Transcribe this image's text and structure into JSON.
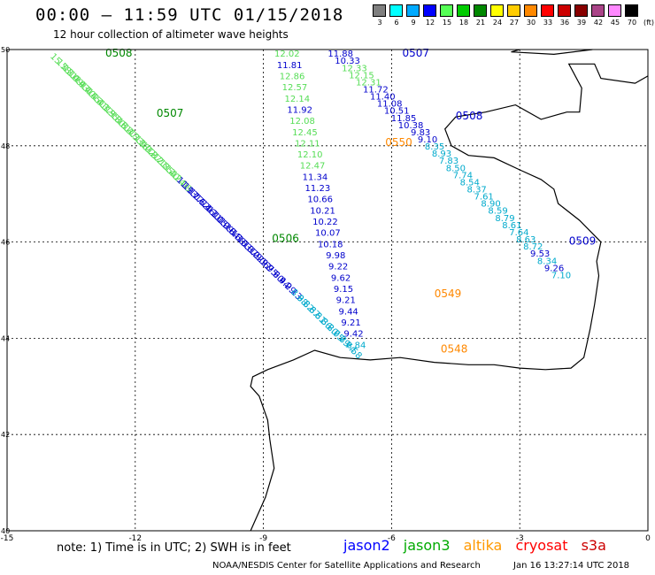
{
  "header": {
    "title": "00:00 – 11:59 UTC 01/15/2018",
    "subtitle": "12 hour collection of altimeter wave heights"
  },
  "legend": {
    "unit": "(ft)",
    "bins": [
      {
        "label": "3",
        "color": "#7f7f7f"
      },
      {
        "label": "6",
        "color": "#00ffff"
      },
      {
        "label": "9",
        "color": "#00aaff"
      },
      {
        "label": "12",
        "color": "#0000ff"
      },
      {
        "label": "15",
        "color": "#55ff55"
      },
      {
        "label": "18",
        "color": "#00cc00"
      },
      {
        "label": "21",
        "color": "#008800"
      },
      {
        "label": "24",
        "color": "#ffff00"
      },
      {
        "label": "27",
        "color": "#ffcc00"
      },
      {
        "label": "30",
        "color": "#ff8800"
      },
      {
        "label": "33",
        "color": "#ff0000"
      },
      {
        "label": "36",
        "color": "#cc0000"
      },
      {
        "label": "39",
        "color": "#880000"
      },
      {
        "label": "42",
        "color": "#aa4488"
      },
      {
        "label": "45",
        "color": "#ff88ff"
      },
      {
        "label": "70",
        "color": "#000000"
      }
    ]
  },
  "map": {
    "lon_range": [
      -15,
      0
    ],
    "lat_range": [
      40,
      50
    ],
    "x_ticks": [
      "-15",
      "-12",
      "-9",
      "-6",
      "-3",
      "0"
    ],
    "y_ticks": [
      "50",
      "48",
      "46",
      "44",
      "42",
      "40"
    ]
  },
  "tracks": {
    "pass_labels": [
      {
        "text": "0508",
        "lon": -12.7,
        "lat": 49.85,
        "color": "#008800"
      },
      {
        "text": "0507",
        "lon": -11.5,
        "lat": 48.6,
        "color": "#008800"
      },
      {
        "text": "0506",
        "lon": -8.8,
        "lat": 46.0,
        "color": "#008800"
      },
      {
        "text": "0507",
        "lon": -5.75,
        "lat": 49.85,
        "color": "#0000cc"
      },
      {
        "text": "0508",
        "lon": -4.5,
        "lat": 48.55,
        "color": "#0000cc"
      },
      {
        "text": "0509",
        "lon": -1.85,
        "lat": 45.95,
        "color": "#0000cc"
      },
      {
        "text": "0550",
        "lon": -6.15,
        "lat": 48.0,
        "color": "#ff8800"
      },
      {
        "text": "0549",
        "lon": -5.0,
        "lat": 44.85,
        "color": "#ff8800"
      },
      {
        "text": "0548",
        "lon": -4.85,
        "lat": 43.7,
        "color": "#ff8800"
      }
    ],
    "jason3_swh": [
      "12.02",
      "11.81",
      "12.86",
      "12.57",
      "12.14",
      "11.92",
      "12.08",
      "12.45",
      "12.11",
      "12.10",
      "12.47",
      "11.34",
      "11.23",
      "10.66",
      "10.21",
      "10.22",
      "10.07",
      "10.18",
      "9.98",
      "9.22",
      "9.62",
      "9.15",
      "9.21",
      "9.44",
      "9.21",
      "9.42",
      "6.84"
    ],
    "east_track_swh": [
      "11.88",
      "10.33",
      "12.33",
      "12.15",
      "12.31",
      "11.72",
      "11.40",
      "11.08",
      "10.51",
      "11.85",
      "10.38",
      "9.83",
      "9.10",
      "8.35",
      "8.93",
      "7.83",
      "8.50",
      "7.74",
      "8.54",
      "8.37",
      "7.61",
      "8.90",
      "8.59",
      "8.79",
      "8.61",
      "7.64",
      "8.63",
      "8.72",
      "9.53",
      "8.34",
      "9.26",
      "7.10"
    ],
    "west_track_swh": [
      "15.78",
      "15.21",
      "15.09",
      "14.93",
      "14.70",
      "14.55",
      "14.31",
      "14.12",
      "13.95",
      "13.80",
      "13.61",
      "13.47",
      "13.33",
      "13.18",
      "13.02",
      "12.87",
      "12.71",
      "12.55",
      "12.40",
      "12.24",
      "12.08",
      "11.93",
      "11.77",
      "11.62",
      "11.46",
      "11.31",
      "11.15",
      "10.99",
      "10.84",
      "10.68",
      "10.53",
      "10.37",
      "10.22",
      "10.06",
      "9.91",
      "9.75",
      "9.60",
      "9.44",
      "9.29",
      "9.13",
      "8.98",
      "8.82",
      "8.67",
      "8.51",
      "8.36",
      "8.20",
      "8.05",
      "7.89",
      "7.74",
      "7.58"
    ]
  },
  "footer": {
    "note": "note: 1) Time is in UTC; 2) SWH is in feet",
    "satellites": [
      {
        "name": "jason2",
        "color": "#0000ff"
      },
      {
        "name": "jason3",
        "color": "#00aa00"
      },
      {
        "name": "altika",
        "color": "#ff9900"
      },
      {
        "name": "cryosat",
        "color": "#ff0000"
      },
      {
        "name": "s3a",
        "color": "#cc0000"
      }
    ],
    "credit": "NOAA/NESDIS Center for Satellite Applications and Research",
    "timestamp": "Jan 16 13:27:14 UTC 2018"
  }
}
